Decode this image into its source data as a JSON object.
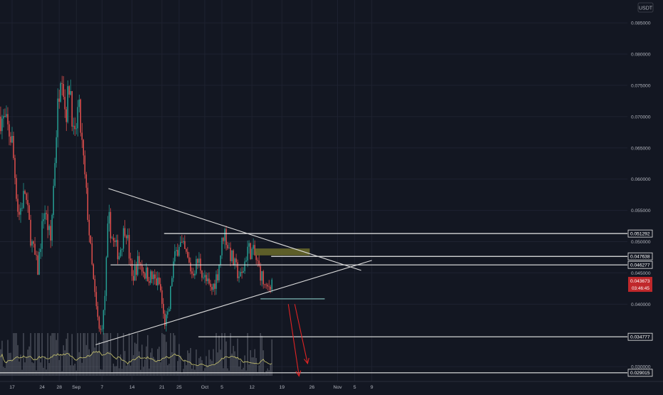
{
  "chart_data": {
    "type": "candlestick",
    "title": "",
    "currency": "USDT",
    "y_scale": "linear",
    "ylim": [
      0.0285,
      0.0885
    ],
    "y_ticks": [
      "0.085000",
      "0.080000",
      "0.075000",
      "0.070000",
      "0.065000",
      "0.060000",
      "0.055000",
      "0.050000",
      "0.045000",
      "0.040000",
      "0.030000"
    ],
    "x_ticks": [
      {
        "label": "17",
        "day": 1
      },
      {
        "label": "24",
        "day": 8
      },
      {
        "label": "28",
        "day": 12
      },
      {
        "label": "Sep",
        "day": 16
      },
      {
        "label": "7",
        "day": 22
      },
      {
        "label": "14",
        "day": 29
      },
      {
        "label": "21",
        "day": 36
      },
      {
        "label": "25",
        "day": 40
      },
      {
        "label": "Oct",
        "day": 46
      },
      {
        "label": "5",
        "day": 50
      },
      {
        "label": "12",
        "day": 57
      },
      {
        "label": "19",
        "day": 64
      },
      {
        "label": "26",
        "day": 71
      },
      {
        "label": "Nov",
        "day": 77
      },
      {
        "label": "5",
        "day": 81
      },
      {
        "label": "9",
        "day": 85
      }
    ],
    "price_levels": [
      {
        "label": "0.051292",
        "value": 0.051292,
        "from_day": 36.5,
        "style": "white"
      },
      {
        "label": "0.047638",
        "value": 0.047638,
        "from_day": 61.5,
        "style": "white"
      },
      {
        "label": "0.046277",
        "value": 0.046277,
        "from_day": 24.0,
        "style": "white"
      },
      {
        "label": "0.034777",
        "value": 0.034777,
        "from_day": 44.5,
        "style": "white"
      },
      {
        "label": "0.029015",
        "value": 0.029015,
        "from_day": 0,
        "style": "white"
      }
    ],
    "current_price": {
      "label": "0.043673",
      "value": 0.043673,
      "countdown": "03:46:45"
    },
    "trendlines": [
      {
        "name": "descending",
        "from": [
          23.5,
          0.0585
        ],
        "to": [
          82.5,
          0.0454
        ]
      },
      {
        "name": "ascending",
        "from": [
          20.5,
          0.0335
        ],
        "to": [
          85,
          0.047
        ]
      }
    ],
    "zones": [
      {
        "name": "resistance-box",
        "from": [
          57.7,
          0.0489
        ],
        "to": [
          70.5,
          0.0478
        ],
        "color": "#6b6b2a"
      },
      {
        "name": "support-line",
        "from": [
          59,
          0.04085
        ],
        "to": [
          74,
          0.04085
        ],
        "color": "#5f8a8b"
      }
    ],
    "projection_arrows": [
      {
        "from": [
          65.5,
          0.04
        ],
        "to": [
          68,
          0.0285
        ]
      },
      {
        "from": [
          67,
          0.04
        ],
        "to": [
          70,
          0.0305
        ]
      }
    ],
    "colors": {
      "up": "#26a69a",
      "down": "#ef5350",
      "background": "#131722",
      "grid": "#1e2230",
      "text": "#b2b5be"
    },
    "volume_scale_max": 1.0
  }
}
